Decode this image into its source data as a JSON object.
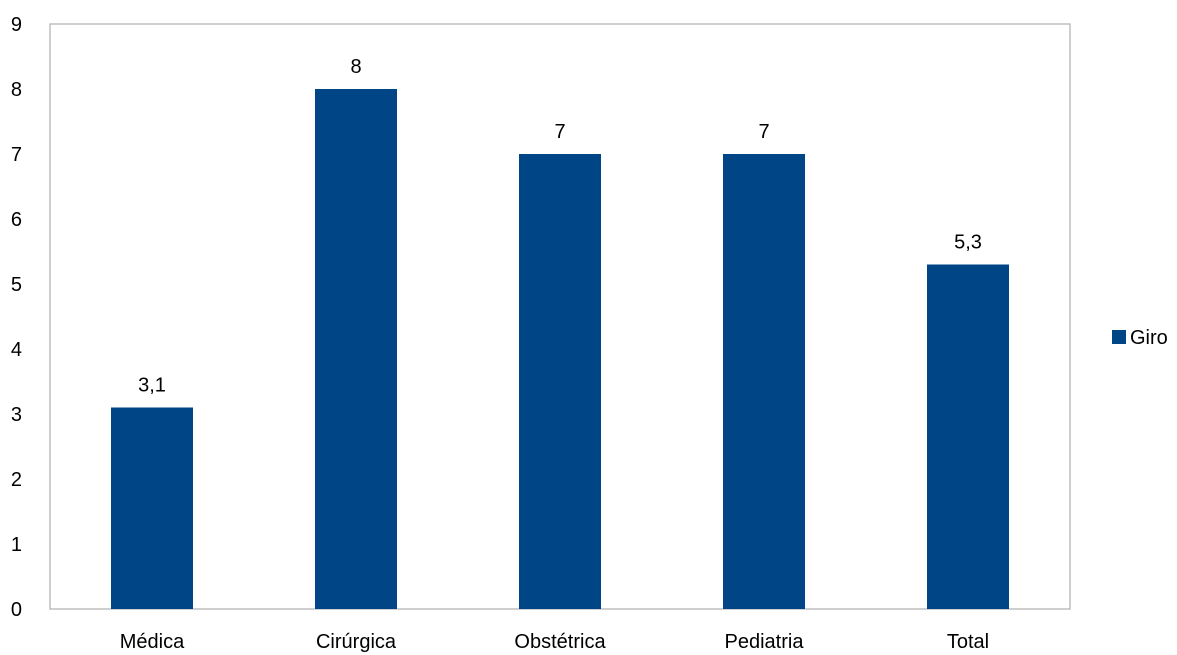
{
  "chart_data": {
    "type": "bar",
    "categories": [
      "Médica",
      "Cirúrgica",
      "Obstétrica",
      "Pediatria",
      "Total"
    ],
    "series": [
      {
        "name": "Giro",
        "values": [
          3.1,
          8,
          7,
          7,
          5.3
        ],
        "value_labels": [
          "3,1",
          "8",
          "7",
          "7",
          "5,3"
        ],
        "color": "#004586"
      }
    ],
    "ylim": [
      0,
      9
    ],
    "yticks": [
      "0",
      "1",
      "2",
      "3",
      "4",
      "5",
      "6",
      "7",
      "8",
      "9"
    ],
    "grid": false,
    "legend_position": "right",
    "title": "",
    "xlabel": "",
    "ylabel": ""
  },
  "colors": {
    "bar": "#004586",
    "plot_border": "#bfbfbf"
  }
}
